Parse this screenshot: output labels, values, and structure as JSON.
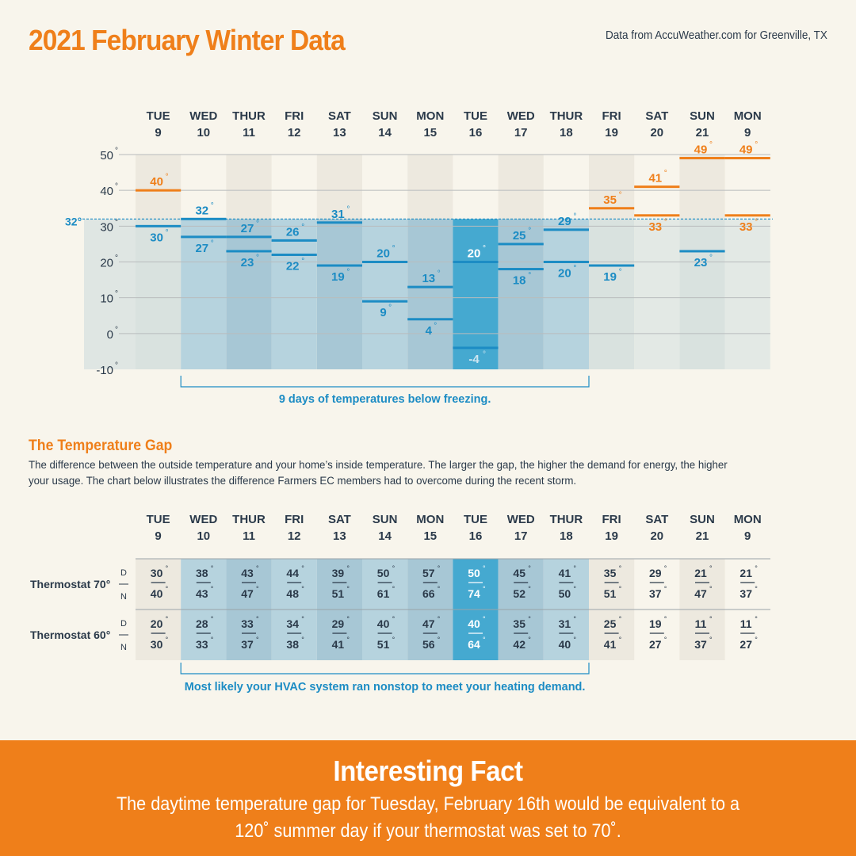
{
  "header": {
    "title": "2021 February Winter Data",
    "source": "Data from AccuWeather.com for Greenville, TX"
  },
  "colors": {
    "orange": "#ef7f1a",
    "blue": "#1c8cc4",
    "dark": "#2b3a4a",
    "freeze_fill": "#b6d3de",
    "coldest_fill": "#45a9d0"
  },
  "chart_data": [
    {
      "type": "range",
      "title": "2021 February Winter Data",
      "categories": [
        {
          "day": "TUE",
          "date": "9"
        },
        {
          "day": "WED",
          "date": "10"
        },
        {
          "day": "THUR",
          "date": "11"
        },
        {
          "day": "FRI",
          "date": "12"
        },
        {
          "day": "SAT",
          "date": "13"
        },
        {
          "day": "SUN",
          "date": "14"
        },
        {
          "day": "MON",
          "date": "15"
        },
        {
          "day": "TUE",
          "date": "16"
        },
        {
          "day": "WED",
          "date": "17"
        },
        {
          "day": "THUR",
          "date": "18"
        },
        {
          "day": "FRI",
          "date": "19"
        },
        {
          "day": "SAT",
          "date": "20"
        },
        {
          "day": "SUN",
          "date": "21"
        },
        {
          "day": "MON",
          "date": "9"
        }
      ],
      "series": [
        {
          "values": [
            40,
            32,
            27,
            26,
            31,
            20,
            13,
            20,
            25,
            29,
            35,
            41,
            49,
            49
          ]
        },
        {
          "values": [
            30,
            27,
            23,
            22,
            19,
            9,
            4,
            -4,
            18,
            20,
            19,
            33,
            23,
            33
          ]
        }
      ],
      "ylim": [
        -10,
        50
      ],
      "yticks": [
        -10,
        0,
        10,
        20,
        30,
        40,
        50
      ],
      "reference_line": {
        "value": 32,
        "label": "32°"
      },
      "grid": true,
      "freezing_days": [
        1,
        2,
        3,
        4,
        5,
        6,
        7,
        8,
        9
      ],
      "coldest_day": 7,
      "freezing_bracket": [
        1,
        9
      ],
      "annotation": "9 days of temperatures below freezing."
    },
    {
      "type": "table",
      "title": "The Temperature Gap",
      "rows": [
        {
          "label": "Thermostat 70°",
          "day_label": "D",
          "night_label": "N",
          "day": [
            30,
            38,
            43,
            44,
            39,
            50,
            57,
            50,
            45,
            41,
            35,
            29,
            21,
            21
          ],
          "night": [
            40,
            43,
            47,
            48,
            51,
            61,
            66,
            74,
            52,
            50,
            51,
            37,
            47,
            37
          ]
        },
        {
          "label": "Thermostat 60°",
          "day_label": "D",
          "night_label": "N",
          "day": [
            20,
            28,
            33,
            34,
            29,
            40,
            47,
            40,
            35,
            31,
            25,
            19,
            11,
            11
          ],
          "night": [
            30,
            33,
            37,
            38,
            41,
            51,
            56,
            64,
            42,
            40,
            41,
            27,
            37,
            27
          ]
        }
      ],
      "annotation": "Most likely your HVAC system ran nonstop to meet your heating demand."
    }
  ],
  "gap": {
    "title": "The Temperature Gap",
    "description": "The difference between the outside temperature and your home’s inside temperature. The larger the gap, the higher the demand for energy, the higher your usage. The chart below illustrates the difference Farmers EC members had to overcome during the recent storm."
  },
  "fact": {
    "title": "Interesting Fact",
    "body": "The daytime temperature gap for Tuesday, February 16th would be equivalent to a 120˚ summer day if your thermostat was set to 70˚."
  }
}
